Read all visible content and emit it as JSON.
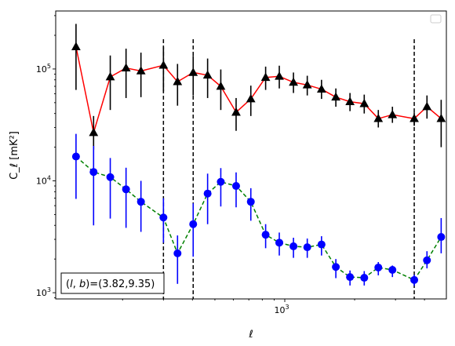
{
  "chart_data": {
    "type": "scatter",
    "title": "",
    "xlabel": "ℓ",
    "ylabel": "C_ℓ  [mK²]",
    "xscale": "log",
    "yscale": "log",
    "xlim": [
      103,
      4970
    ],
    "ylim": [
      880,
      330000
    ],
    "x_tick_labels": [
      {
        "value": 1000,
        "base": "10",
        "exp": "3"
      }
    ],
    "y_tick_labels": [
      {
        "value": 1000,
        "base": "10",
        "exp": "3"
      },
      {
        "value": 10000,
        "base": "10",
        "exp": "4"
      },
      {
        "value": 100000,
        "base": "10",
        "exp": "5"
      }
    ],
    "grid": false,
    "legend": {
      "location": "upper right",
      "entries": []
    },
    "annotation": {
      "text_pre": "(",
      "l": "l",
      "comma": ", ",
      "b": "b",
      "text_post": ")=(3.82,9.35)",
      "location": "lower left"
    },
    "vlines": [
      {
        "x": 300,
        "color": "#000000",
        "style": "dashed"
      },
      {
        "x": 403,
        "color": "#000000",
        "style": "dashed"
      },
      {
        "x": 3613,
        "color": "#000000",
        "style": "dashed"
      }
    ],
    "series": [
      {
        "marker": "triangle",
        "marker_color": "#000000",
        "line_color": "#ff0000",
        "line_style": "solid",
        "errorbar_color": "#000000",
        "x": [
          126,
          150,
          177,
          207,
          240,
          300,
          345,
          403,
          465,
          530,
          617,
          714,
          827,
          947,
          1090,
          1250,
          1440,
          1660,
          1910,
          2200,
          2530,
          2910,
          3613,
          4100,
          4720
        ],
        "y": [
          158000,
          27000,
          85000,
          102000,
          96000,
          108000,
          77000,
          93000,
          88000,
          70000,
          41000,
          54000,
          84000,
          86000,
          76000,
          72000,
          66000,
          56000,
          51000,
          49000,
          36000,
          39000,
          36000,
          46000,
          36000
        ],
        "yerr_low": [
          93000,
          8000,
          42000,
          47000,
          40000,
          45000,
          30000,
          35000,
          33000,
          27000,
          13000,
          16000,
          19000,
          19000,
          15000,
          14000,
          12000,
          10000,
          9000,
          9000,
          6000,
          6000,
          5000,
          10000,
          16000
        ],
        "yerr_high": [
          95000,
          11000,
          47000,
          50000,
          44000,
          50000,
          34000,
          38000,
          36000,
          29000,
          14000,
          17000,
          21000,
          21000,
          17000,
          15000,
          14000,
          11000,
          10000,
          10000,
          7000,
          7000,
          5000,
          12000,
          17000
        ]
      },
      {
        "marker": "circle",
        "marker_color": "#0000ff",
        "line_color": "#008000",
        "line_style": "dashed",
        "errorbar_color": "#0000ff",
        "x": [
          126,
          150,
          177,
          207,
          240,
          300,
          345,
          403,
          465,
          530,
          617,
          714,
          827,
          947,
          1090,
          1250,
          1440,
          1660,
          1910,
          2200,
          2530,
          2910,
          3613,
          4100,
          4720
        ],
        "y": [
          16500,
          12000,
          10800,
          8400,
          6500,
          4700,
          2250,
          4100,
          7700,
          9800,
          9000,
          6500,
          3300,
          2800,
          2600,
          2550,
          2700,
          1700,
          1380,
          1360,
          1680,
          1600,
          1300,
          1950,
          3150
        ],
        "yerr_low": [
          9600,
          8000,
          6200,
          4600,
          3000,
          1900,
          1050,
          2000,
          3600,
          3900,
          3200,
          2100,
          800,
          650,
          550,
          500,
          550,
          350,
          220,
          200,
          250,
          220,
          150,
          300,
          900
        ],
        "yerr_high": [
          9800,
          8500,
          5200,
          4700,
          3500,
          2300,
          1000,
          2200,
          3900,
          3200,
          2900,
          2100,
          800,
          650,
          500,
          500,
          500,
          300,
          200,
          200,
          200,
          150,
          150,
          400,
          1500
        ]
      }
    ]
  }
}
